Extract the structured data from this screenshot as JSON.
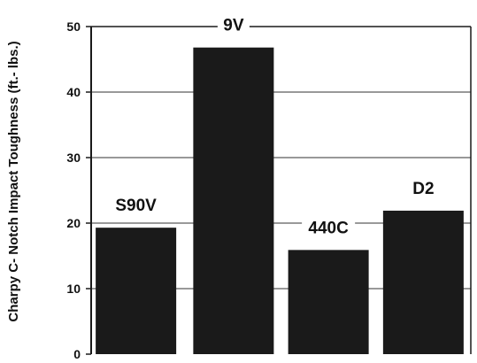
{
  "chart_data": {
    "type": "bar",
    "title": "",
    "xlabel": "",
    "ylabel": "Charpy C- Notch Impact Toughness    (ft.- lbs.)",
    "categories": [
      "S90V",
      "9V",
      "440C",
      "D2"
    ],
    "values": [
      19.3,
      46.8,
      15.9,
      21.9
    ],
    "ylim": [
      0,
      50
    ],
    "yticks": [
      0,
      10,
      20,
      30,
      40,
      50
    ],
    "grid": true,
    "legend": "none",
    "bar_color": "#1a1a1a",
    "axis_color": "#1a1a1a"
  }
}
